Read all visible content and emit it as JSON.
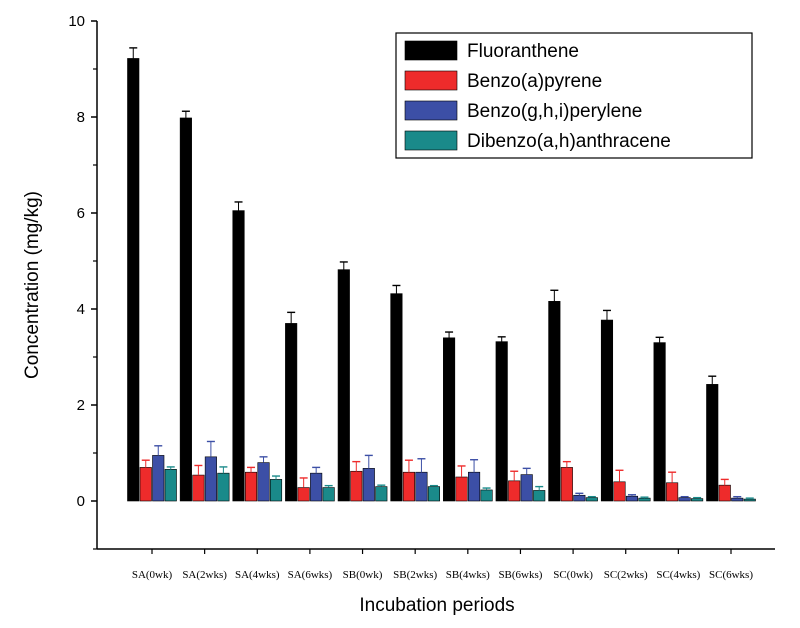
{
  "chart_data": {
    "type": "bar",
    "xlabel": "Incubation periods",
    "ylabel": "Concentration (mg/kg)",
    "ylim": [
      -1,
      10
    ],
    "yticks": [
      0,
      2,
      4,
      6,
      8,
      10
    ],
    "grid": false,
    "legend_position": "top-right",
    "categories": [
      "SA(0wk)",
      "SA(2wks)",
      "SA(4wks)",
      "SA(6wks)",
      "SB(0wk)",
      "SB(2wks)",
      "SB(4wks)",
      "SB(6wks)",
      "SC(0wk)",
      "SC(2wks)",
      "SC(4wks)",
      "SC(6wks)"
    ],
    "series": [
      {
        "name": "Fluoranthene",
        "color": "#000000",
        "values": [
          9.22,
          7.98,
          6.05,
          3.7,
          4.82,
          4.32,
          3.4,
          3.32,
          4.16,
          3.77,
          3.3,
          2.43
        ],
        "errors": [
          0.22,
          0.14,
          0.18,
          0.23,
          0.16,
          0.17,
          0.12,
          0.1,
          0.23,
          0.2,
          0.11,
          0.17
        ]
      },
      {
        "name": "Benzo(a)pyrene",
        "color": "#ee2b2b",
        "values": [
          0.7,
          0.54,
          0.6,
          0.28,
          0.62,
          0.6,
          0.5,
          0.42,
          0.7,
          0.4,
          0.38,
          0.33
        ],
        "errors": [
          0.15,
          0.2,
          0.1,
          0.2,
          0.2,
          0.25,
          0.23,
          0.2,
          0.12,
          0.24,
          0.22,
          0.12
        ]
      },
      {
        "name": "Benzo(g,h,i)perylene",
        "color": "#3c4fa6",
        "values": [
          0.95,
          0.92,
          0.8,
          0.58,
          0.68,
          0.6,
          0.6,
          0.55,
          0.12,
          0.1,
          0.07,
          0.06
        ],
        "errors": [
          0.2,
          0.32,
          0.12,
          0.12,
          0.27,
          0.28,
          0.26,
          0.13,
          0.04,
          0.03,
          0.02,
          0.03
        ]
      },
      {
        "name": "Dibenzo(a,h)anthracene",
        "color": "#1a8a8a",
        "values": [
          0.66,
          0.58,
          0.45,
          0.28,
          0.3,
          0.3,
          0.23,
          0.22,
          0.07,
          0.06,
          0.05,
          0.04
        ],
        "errors": [
          0.05,
          0.13,
          0.07,
          0.04,
          0.03,
          0.02,
          0.04,
          0.08,
          0.02,
          0.02,
          0.02,
          0.02
        ]
      }
    ]
  }
}
